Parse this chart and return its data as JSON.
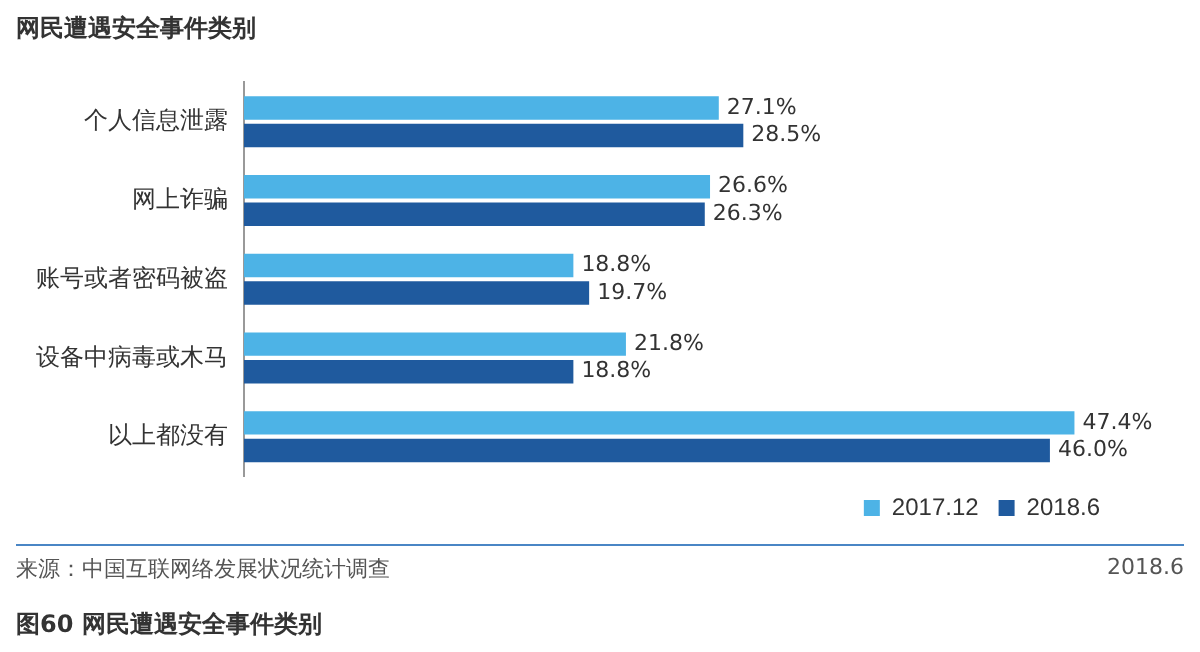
{
  "chart_data": {
    "type": "bar",
    "orientation": "horizontal",
    "title": "网民遭遇安全事件类别",
    "categories": [
      "个人信息泄露",
      "网上诈骗",
      "账号或者密码被盗",
      "设备中病毒或木马",
      "以上都没有"
    ],
    "series": [
      {
        "name": "2017.12",
        "color": "#4db3e6",
        "values": [
          27.1,
          26.6,
          18.8,
          21.8,
          47.4
        ],
        "value_labels": [
          "27.1%",
          "26.6%",
          "18.8%",
          "21.8%",
          "47.4%"
        ]
      },
      {
        "name": "2018.6",
        "color": "#1f5a9e",
        "values": [
          28.5,
          26.3,
          19.7,
          18.8,
          46.0
        ],
        "value_labels": [
          "28.5%",
          "26.3%",
          "19.7%",
          "18.8%",
          "46.0%"
        ]
      }
    ],
    "legend": "bottom right",
    "annotations": [
      "来源：中国互联网络发展状况统计调查",
      "2018.6",
      "图60 网民遭遇安全事件类别"
    ]
  }
}
